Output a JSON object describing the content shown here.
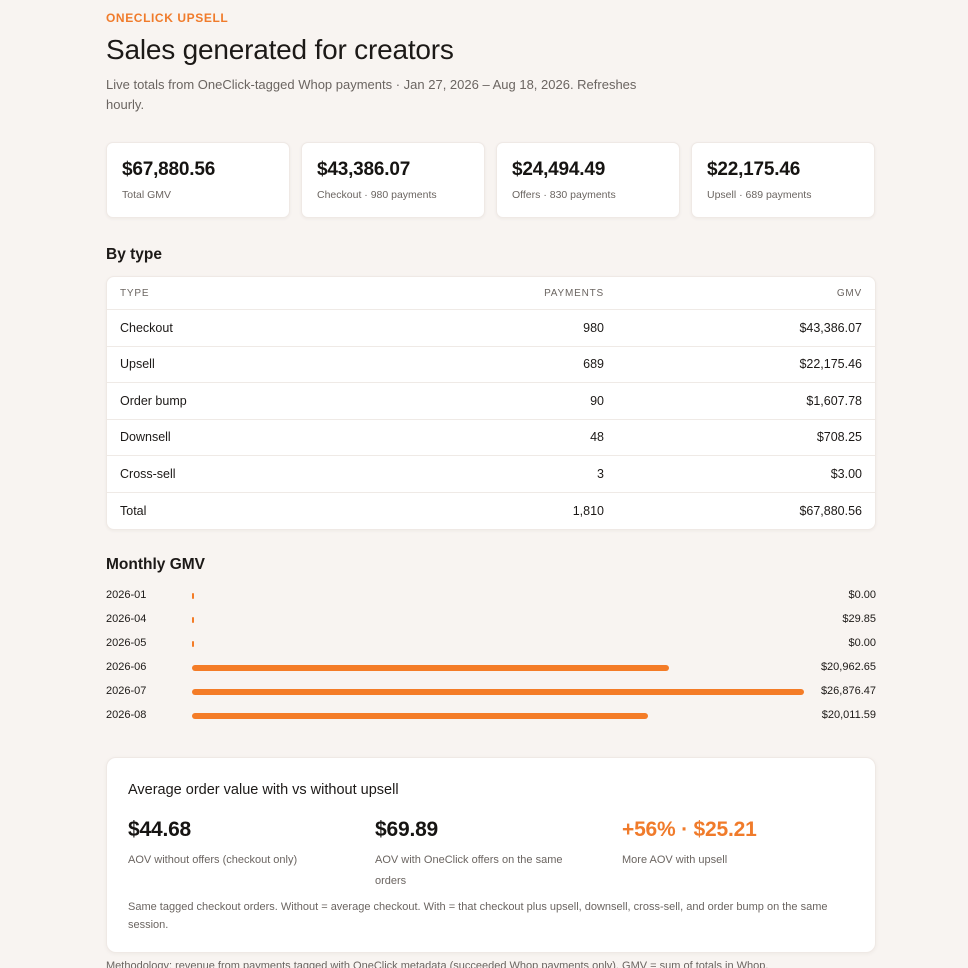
{
  "header": {
    "eyebrow": "ONECLICK UPSELL",
    "title": "Sales generated for creators",
    "subtitle": "Live totals from OneClick-tagged Whop payments · Jan 27, 2026 – Aug 18, 2026. Refreshes hourly."
  },
  "stats": [
    {
      "value": "$67,880.56",
      "label": "Total GMV"
    },
    {
      "value": "$43,386.07",
      "label": "Checkout · 980 payments"
    },
    {
      "value": "$24,494.49",
      "label": "Offers · 830 payments"
    },
    {
      "value": "$22,175.46",
      "label": "Upsell · 689 payments"
    }
  ],
  "by_type": {
    "title": "By type",
    "columns": [
      "TYPE",
      "PAYMENTS",
      "GMV"
    ],
    "rows": [
      {
        "type": "Checkout",
        "payments": "980",
        "gmv": "$43,386.07"
      },
      {
        "type": "Upsell",
        "payments": "689",
        "gmv": "$22,175.46"
      },
      {
        "type": "Order bump",
        "payments": "90",
        "gmv": "$1,607.78"
      },
      {
        "type": "Downsell",
        "payments": "48",
        "gmv": "$708.25"
      },
      {
        "type": "Cross-sell",
        "payments": "3",
        "gmv": "$3.00"
      },
      {
        "type": "Total",
        "payments": "1,810",
        "gmv": "$67,880.56"
      }
    ]
  },
  "monthly": {
    "title": "Monthly GMV",
    "bar_color": "#f47c27"
  },
  "chart_data": {
    "type": "bar",
    "orientation": "horizontal",
    "categories": [
      "2026-01",
      "2026-04",
      "2026-05",
      "2026-06",
      "2026-07",
      "2026-08"
    ],
    "values": [
      0.0,
      29.85,
      0.0,
      20962.65,
      26876.47,
      20011.59
    ],
    "value_labels": [
      "$0.00",
      "$29.85",
      "$0.00",
      "$20,962.65",
      "$26,876.47",
      "$20,011.59"
    ],
    "title": "Monthly GMV",
    "xlim": [
      0,
      26876.47
    ]
  },
  "aov": {
    "title": "Average order value with vs without upsell",
    "without": {
      "value": "$44.68",
      "label": "AOV without offers (checkout only)"
    },
    "with": {
      "value": "$69.89",
      "label": "AOV with OneClick offers on the same orders"
    },
    "lift": {
      "value": "+56% · $25.21",
      "label": "More AOV with upsell"
    },
    "note": "Same tagged checkout orders. Without = average checkout. With = that checkout plus upsell, downsell, cross-sell, and order bump on the same session.",
    "accent_color": "#f07b2b"
  },
  "footer": {
    "text": "Methodology: revenue from payments tagged with OneClick metadata (succeeded Whop payments only). GMV = sum of totals in Whop."
  }
}
